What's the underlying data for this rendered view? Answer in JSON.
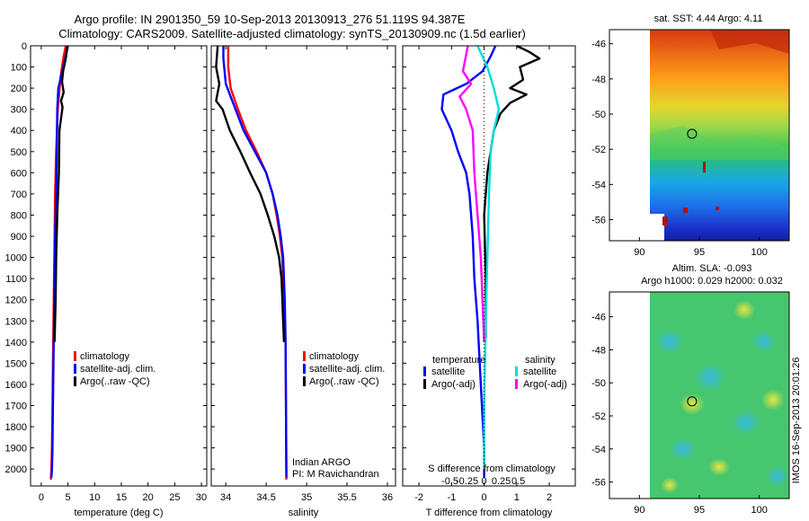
{
  "header": {
    "line1": "Argo profile: IN 2901350_59 10-Sep-2013 20130913_276 51.119S 94.387E",
    "line2": "Climatology: CARS2009. Satellite-adjusted climatology: synTS_20130909.nc (1.5d earlier)"
  },
  "side_label": "IMOS 16-Sep-2013 20:01:26",
  "colors": {
    "climatology": "#ff0000",
    "satellite": "#0000ff",
    "argo": "#000000",
    "sal_satellite": "#00dddd",
    "sal_argo": "#ff00ff"
  },
  "chart_data": [
    {
      "id": "temperature",
      "type": "line",
      "xlabel": "temperature (deg C)",
      "ylabel": "",
      "xlim": [
        -2,
        31
      ],
      "ylim": [
        2080,
        0
      ],
      "xticks": [
        0,
        5,
        10,
        15,
        20,
        25,
        30
      ],
      "yticks": [
        0,
        100,
        200,
        300,
        400,
        500,
        600,
        700,
        800,
        900,
        1000,
        1100,
        1200,
        1300,
        1400,
        1500,
        1600,
        1700,
        1800,
        1900,
        2000
      ],
      "legend": [
        "climatology",
        "satellite-adj. clim.",
        "Argo(..raw -QC)"
      ],
      "series": [
        {
          "name": "climatology",
          "color": "#ff0000",
          "x": [
            4.6,
            4.2,
            3.6,
            3.1,
            2.8,
            2.6,
            2.5,
            2.4,
            2.3,
            2.2,
            2.1,
            2.0,
            1.9,
            1.8
          ],
          "y": [
            0,
            50,
            150,
            300,
            500,
            700,
            900,
            1100,
            1300,
            1500,
            1700,
            1900,
            2000,
            2050
          ]
        },
        {
          "name": "satellite-adj. clim.",
          "color": "#0000ff",
          "x": [
            5.0,
            4.5,
            3.2,
            3.0,
            2.9,
            2.8,
            2.6,
            2.5,
            2.4,
            2.3,
            2.2,
            2.1,
            2.0,
            1.9
          ],
          "y": [
            0,
            60,
            200,
            300,
            500,
            700,
            900,
            1100,
            1300,
            1500,
            1700,
            1900,
            2000,
            2040
          ]
        },
        {
          "name": "Argo(..raw -QC)",
          "color": "#000000",
          "x": [
            4.9,
            4.6,
            4.1,
            3.9,
            4.2,
            3.7,
            4.0,
            3.4,
            3.3,
            3.0,
            2.8,
            2.7,
            2.5
          ],
          "y": [
            0,
            60,
            120,
            170,
            220,
            260,
            290,
            400,
            600,
            800,
            1000,
            1200,
            1400
          ]
        }
      ]
    },
    {
      "id": "salinity",
      "type": "line",
      "xlabel": "salinity",
      "ylabel": "",
      "xlim": [
        33.82,
        36.1
      ],
      "ylim": [
        2080,
        0
      ],
      "xticks": [
        34,
        34.5,
        35,
        35.5,
        36
      ],
      "xticklabels": [
        "34",
        "34.5",
        "35",
        "35.5",
        "36"
      ],
      "legend": [
        "climatology",
        "satellite-adj. clim.",
        "Argo(..raw -QC)"
      ],
      "annotation": [
        "Indian ARGO",
        "PI: M Ravichandran"
      ],
      "series": [
        {
          "name": "climatology",
          "color": "#ff0000",
          "x": [
            34.03,
            34.03,
            34.06,
            34.15,
            34.25,
            34.38,
            34.5,
            34.58,
            34.63,
            34.67,
            34.7,
            34.72,
            34.74,
            34.75
          ],
          "y": [
            0,
            100,
            200,
            300,
            400,
            500,
            600,
            700,
            800,
            900,
            1000,
            1200,
            1400,
            2050
          ]
        },
        {
          "name": "satellite-adj. clim.",
          "color": "#0000ff",
          "x": [
            33.97,
            33.97,
            34.0,
            34.1,
            34.22,
            34.36,
            34.5,
            34.58,
            34.64,
            34.68,
            34.71,
            34.73,
            34.74,
            34.75
          ],
          "y": [
            0,
            60,
            180,
            280,
            400,
            500,
            600,
            700,
            800,
            900,
            1000,
            1200,
            1400,
            2040
          ]
        },
        {
          "name": "Argo(..raw -QC)",
          "color": "#000000",
          "x": [
            33.9,
            33.88,
            33.92,
            33.88,
            33.96,
            34.05,
            34.18,
            34.3,
            34.43,
            34.52,
            34.6,
            34.66,
            34.69,
            34.72
          ],
          "y": [
            0,
            100,
            180,
            260,
            300,
            400,
            500,
            600,
            700,
            800,
            900,
            1000,
            1100,
            1400
          ]
        }
      ]
    },
    {
      "id": "difference",
      "type": "line",
      "xlabel": "T difference from climatology",
      "x2label": "S difference from climatology",
      "xlim": [
        -2.5,
        2.8
      ],
      "ylim": [
        2080,
        0
      ],
      "xticks": [
        -2,
        -1,
        0,
        1,
        2
      ],
      "x2ticks": [
        "-0.5",
        "-0.25",
        "0",
        "0.25",
        "0.5"
      ],
      "legend_left_title": "temperature",
      "legend_right_title": "salinity",
      "legend": [
        "satellite",
        "Argo(-adj)",
        "satellite",
        "Argo(-adj)"
      ],
      "series": [
        {
          "name": "T satellite",
          "color": "#0000ff",
          "x": [
            0.35,
            0.2,
            -0.05,
            -0.55,
            -1.25,
            -1.3,
            -1.0,
            -0.8,
            -0.55,
            -0.45,
            -0.35,
            -0.3,
            -0.2,
            -0.1,
            0.0,
            0.0
          ],
          "y": [
            0,
            50,
            120,
            180,
            230,
            300,
            400,
            500,
            600,
            700,
            900,
            1100,
            1300,
            1600,
            1900,
            2040
          ]
        },
        {
          "name": "T Argo(-adj)",
          "color": "#000000",
          "x": [
            1.0,
            1.4,
            1.7,
            1.1,
            1.2,
            0.8,
            1.3,
            0.8,
            0.5,
            0.3,
            0.1,
            0.0,
            0.05,
            0.05
          ],
          "y": [
            0,
            30,
            60,
            100,
            160,
            200,
            230,
            270,
            320,
            400,
            600,
            800,
            1100,
            1380
          ]
        },
        {
          "name": "S satellite",
          "color": "#00dddd",
          "x": [
            -0.2,
            0.1,
            0.3,
            0.45,
            0.3,
            0.2,
            0.15,
            0.1,
            0.05,
            0.0,
            0.0
          ],
          "y": [
            0,
            100,
            200,
            300,
            400,
            500,
            700,
            1000,
            1300,
            1700,
            2000
          ]
        },
        {
          "name": "S Argo(-adj)",
          "color": "#ff00ff",
          "x": [
            -0.5,
            -0.65,
            -0.4,
            -0.75,
            -0.55,
            -0.35,
            -0.3,
            -0.2,
            -0.1,
            0.0
          ],
          "y": [
            0,
            120,
            180,
            240,
            300,
            400,
            600,
            800,
            1000,
            1400
          ]
        }
      ]
    },
    {
      "id": "sst_map",
      "type": "heatmap",
      "title": "sat. SST: 4.44  Argo: 4.11",
      "xlim": [
        87.5,
        102.5
      ],
      "ylim": [
        -57.2,
        -45.2
      ],
      "xticks": [
        90,
        95,
        100
      ],
      "yticks": [
        -46,
        -48,
        -50,
        -52,
        -54,
        -56
      ],
      "marker": {
        "lon": 94.39,
        "lat": -51.12
      }
    },
    {
      "id": "sla_map",
      "type": "heatmap",
      "title_line1": "Altim. SLA: -0.093",
      "title_line2": "Argo h1000: 0.029  h2000: 0.032",
      "xlim": [
        87.5,
        102.5
      ],
      "ylim": [
        -57.0,
        -44.5
      ],
      "xticks": [
        90,
        95,
        100
      ],
      "yticks": [
        -46,
        -48,
        -50,
        -52,
        -54,
        -56
      ],
      "marker": {
        "lon": 94.39,
        "lat": -51.12
      }
    }
  ]
}
